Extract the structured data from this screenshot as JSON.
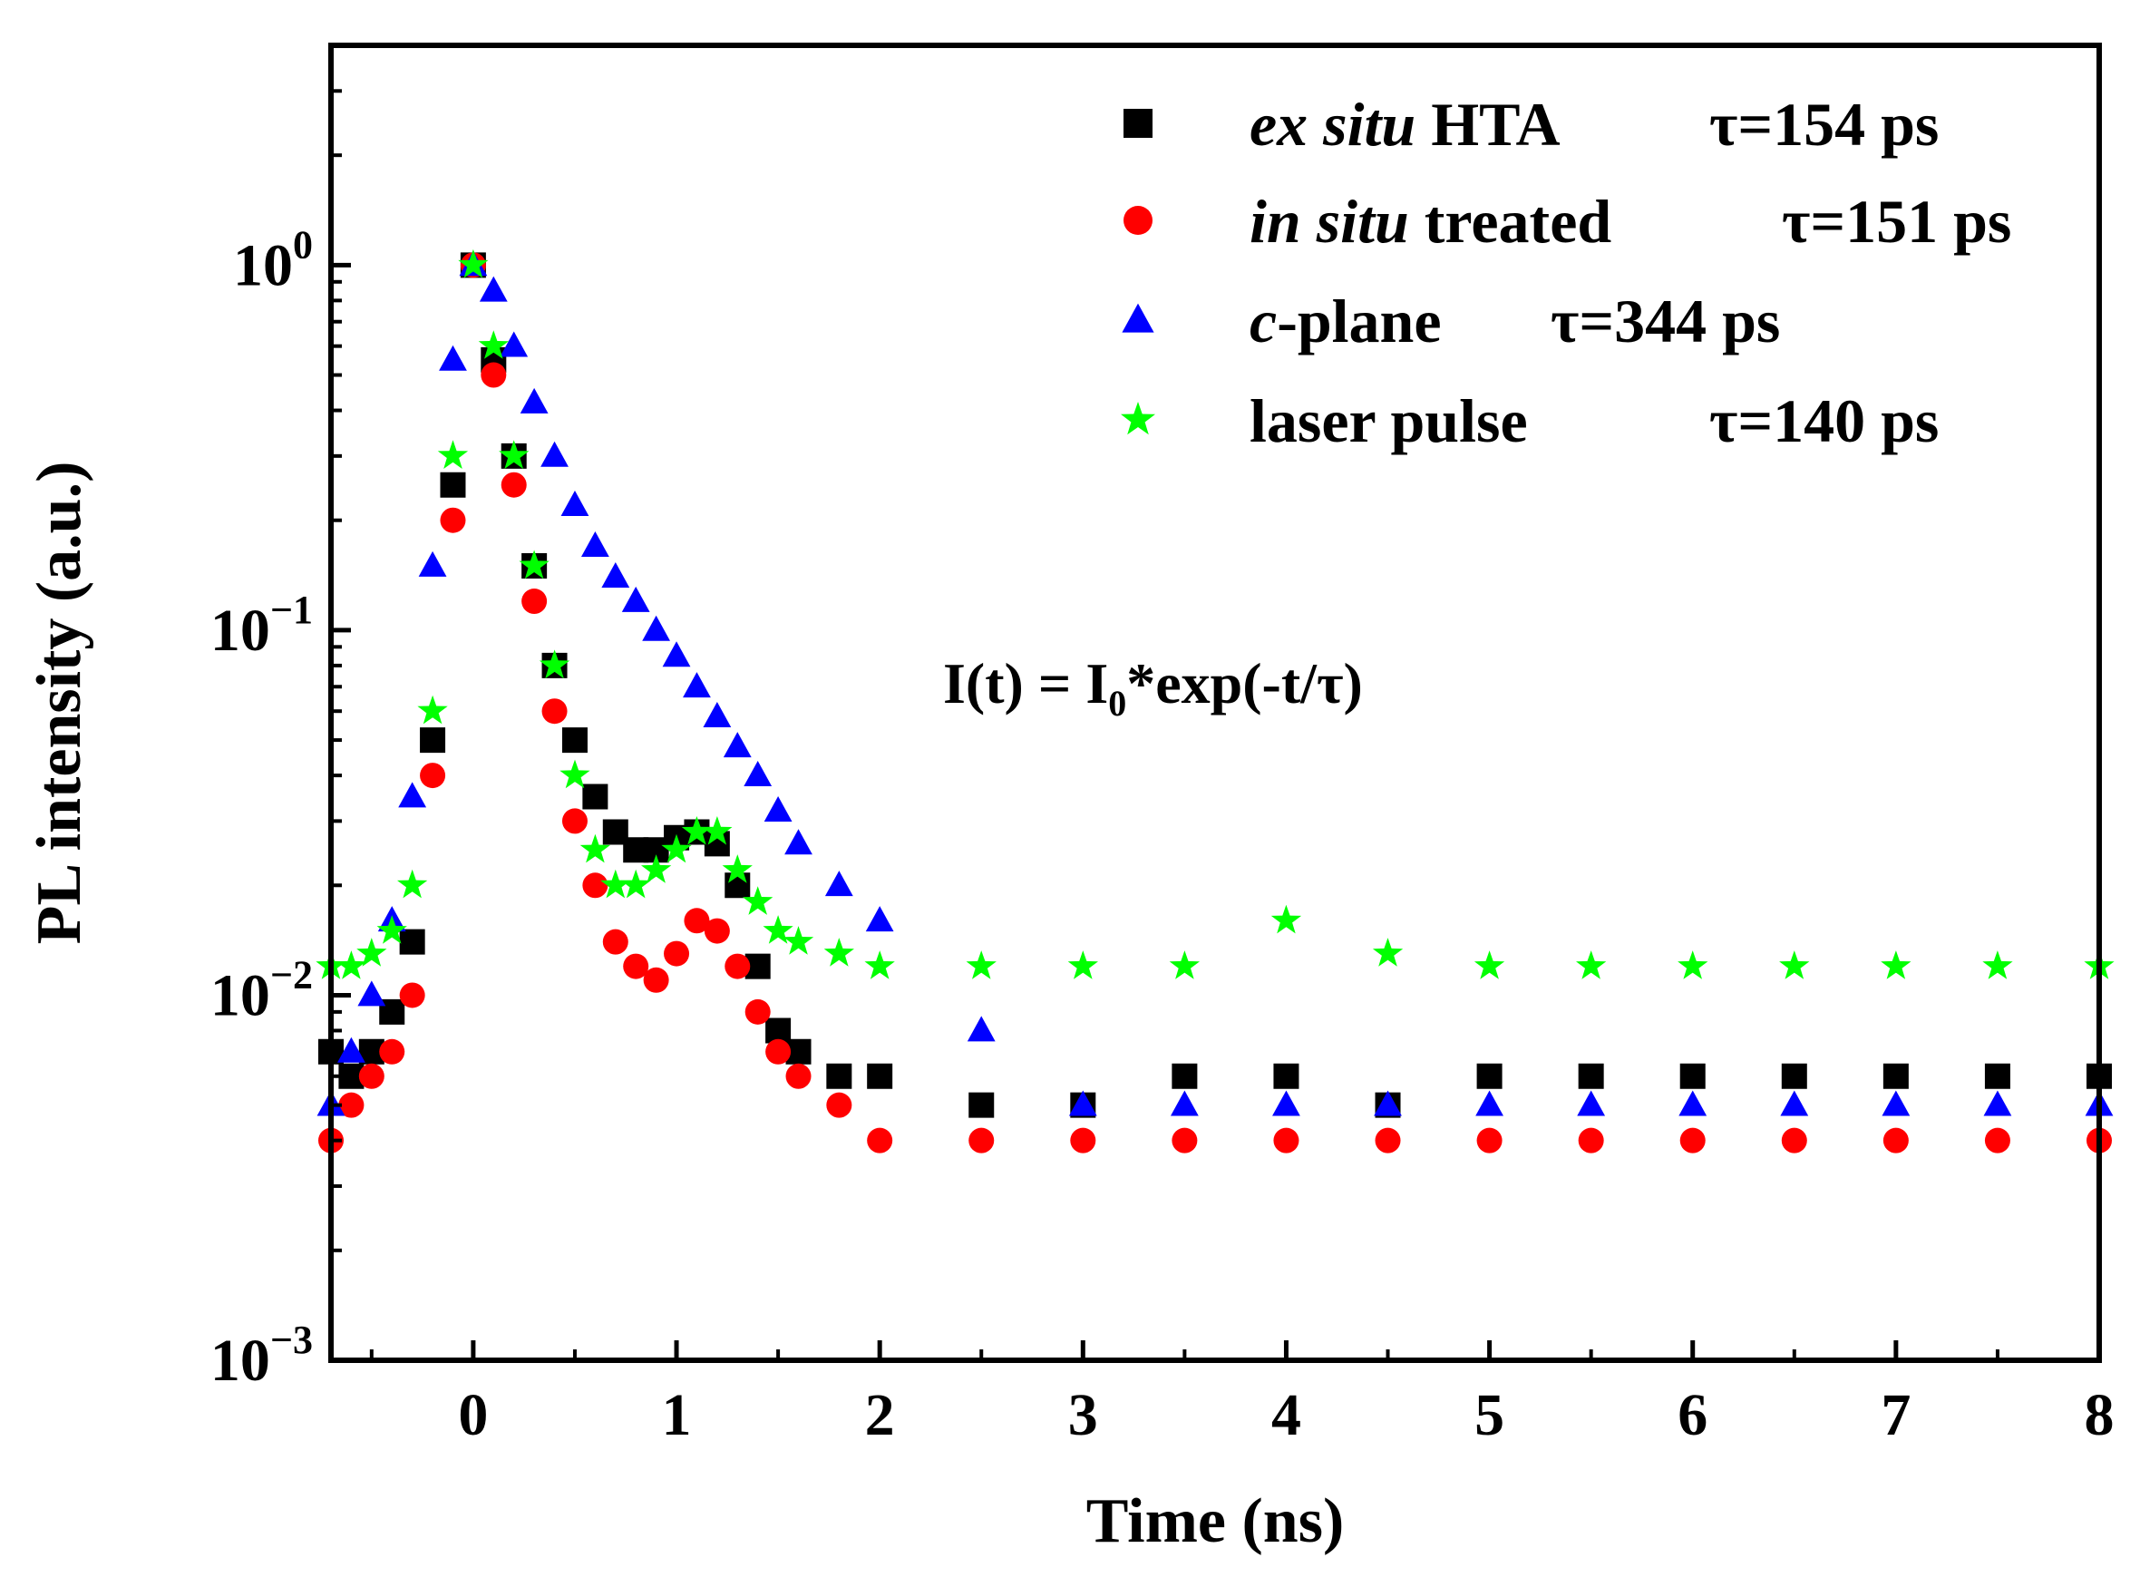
{
  "chart_data": {
    "type": "scatter",
    "xlabel": "Time (ns)",
    "ylabel": "PL intensity (a.u.)",
    "xlim": [
      -0.7,
      8
    ],
    "ylim": [
      0.001,
      4
    ],
    "yscale": "log",
    "grid": false,
    "legend_position": "top-right",
    "x_ticks": [
      0,
      1,
      2,
      3,
      4,
      5,
      6,
      7,
      8
    ],
    "x_tick_labels": [
      "0",
      "1",
      "2",
      "3",
      "4",
      "5",
      "6",
      "7",
      "8"
    ],
    "y_ticks": [
      {
        "value": 1,
        "base": "10",
        "exp": "0"
      },
      {
        "value": 0.1,
        "base": "10",
        "exp": "−1"
      },
      {
        "value": 0.01,
        "base": "10",
        "exp": "−2"
      },
      {
        "value": 0.001,
        "base": "10",
        "exp": "−3"
      }
    ],
    "annotation": {
      "lhs": "I(t) = I",
      "sub": "0",
      "rhs": "*exp(-t/τ)"
    },
    "series": [
      {
        "name": "ex situ HTA",
        "italic_part": "ex situ",
        "plain_part": " HTA",
        "tau_label": "τ=154 ps",
        "marker": "square",
        "color": "#000000",
        "x": [
          -0.7,
          -0.6,
          -0.5,
          -0.4,
          -0.3,
          -0.2,
          -0.1,
          0,
          0.1,
          0.2,
          0.3,
          0.4,
          0.5,
          0.6,
          0.7,
          0.8,
          0.9,
          1.0,
          1.1,
          1.2,
          1.3,
          1.4,
          1.5,
          1.6,
          1.8,
          2.0,
          2.5,
          3.0,
          3.5,
          4.0,
          4.5,
          5.0,
          5.5,
          6.0,
          6.5,
          7.0,
          7.5,
          8.0
        ],
        "y": [
          0.007,
          0.006,
          0.007,
          0.009,
          0.014,
          0.05,
          0.25,
          1.0,
          0.55,
          0.3,
          0.15,
          0.08,
          0.05,
          0.035,
          0.028,
          0.025,
          0.025,
          0.027,
          0.028,
          0.026,
          0.02,
          0.012,
          0.008,
          0.007,
          0.006,
          0.006,
          0.005,
          0.005,
          0.006,
          0.006,
          0.005,
          0.006,
          0.006,
          0.006,
          0.006,
          0.006,
          0.006,
          0.006
        ]
      },
      {
        "name": "in situ treated",
        "italic_part": "in situ",
        "plain_part": " treated",
        "tau_label": "τ=151 ps",
        "marker": "circle",
        "color": "#ff0000",
        "x": [
          -0.7,
          -0.6,
          -0.5,
          -0.4,
          -0.3,
          -0.2,
          -0.1,
          0,
          0.1,
          0.2,
          0.3,
          0.4,
          0.5,
          0.6,
          0.7,
          0.8,
          0.9,
          1.0,
          1.1,
          1.2,
          1.3,
          1.4,
          1.5,
          1.6,
          1.8,
          2.0,
          2.5,
          3.0,
          3.5,
          4.0,
          4.5,
          5.0,
          5.5,
          6.0,
          6.5,
          7.0,
          7.5,
          8.0
        ],
        "y": [
          0.004,
          0.005,
          0.006,
          0.007,
          0.01,
          0.04,
          0.2,
          1.0,
          0.5,
          0.25,
          0.12,
          0.06,
          0.03,
          0.02,
          0.014,
          0.012,
          0.011,
          0.013,
          0.016,
          0.015,
          0.012,
          0.009,
          0.007,
          0.006,
          0.005,
          0.004,
          0.004,
          0.004,
          0.004,
          0.004,
          0.004,
          0.004,
          0.004,
          0.004,
          0.004,
          0.004,
          0.004,
          0.004
        ]
      },
      {
        "name": "c-plane",
        "italic_part": "c",
        "plain_part": "-plane",
        "tau_label": "τ=344 ps",
        "marker": "triangle",
        "color": "#0000ff",
        "x": [
          -0.7,
          -0.6,
          -0.5,
          -0.4,
          -0.3,
          -0.2,
          -0.1,
          0,
          0.1,
          0.2,
          0.3,
          0.4,
          0.5,
          0.6,
          0.7,
          0.8,
          0.9,
          1.0,
          1.1,
          1.2,
          1.3,
          1.4,
          1.5,
          1.6,
          1.8,
          2.0,
          2.5,
          3.0,
          3.5,
          4.0,
          4.5,
          5.0,
          5.5,
          6.0,
          6.5,
          7.0,
          7.5,
          8.0
        ],
        "y": [
          0.005,
          0.007,
          0.01,
          0.016,
          0.035,
          0.15,
          0.55,
          1.0,
          0.85,
          0.6,
          0.42,
          0.3,
          0.22,
          0.17,
          0.14,
          0.12,
          0.1,
          0.085,
          0.07,
          0.058,
          0.048,
          0.04,
          0.032,
          0.026,
          0.02,
          0.016,
          0.008,
          0.005,
          0.005,
          0.005,
          0.005,
          0.005,
          0.005,
          0.005,
          0.005,
          0.005,
          0.005,
          0.005
        ]
      },
      {
        "name": "laser pulse",
        "italic_part": "",
        "plain_part": "laser  pulse",
        "tau_label": "τ=140 ps",
        "marker": "star",
        "color": "#00ff00",
        "x": [
          -0.7,
          -0.6,
          -0.5,
          -0.4,
          -0.3,
          -0.2,
          -0.1,
          0,
          0.1,
          0.2,
          0.3,
          0.4,
          0.5,
          0.6,
          0.7,
          0.8,
          0.9,
          1.0,
          1.1,
          1.2,
          1.3,
          1.4,
          1.5,
          1.6,
          1.8,
          2.0,
          2.5,
          3.0,
          3.5,
          4.0,
          4.5,
          5.0,
          5.5,
          6.0,
          6.5,
          7.0,
          7.5,
          8.0
        ],
        "y": [
          0.012,
          0.012,
          0.013,
          0.015,
          0.02,
          0.06,
          0.3,
          1.0,
          0.6,
          0.3,
          0.15,
          0.08,
          0.04,
          0.025,
          0.02,
          0.02,
          0.022,
          0.025,
          0.028,
          0.028,
          0.022,
          0.018,
          0.015,
          0.014,
          0.013,
          0.012,
          0.012,
          0.012,
          0.012,
          0.016,
          0.013,
          0.012,
          0.012,
          0.012,
          0.012,
          0.012,
          0.012,
          0.012
        ]
      }
    ]
  }
}
